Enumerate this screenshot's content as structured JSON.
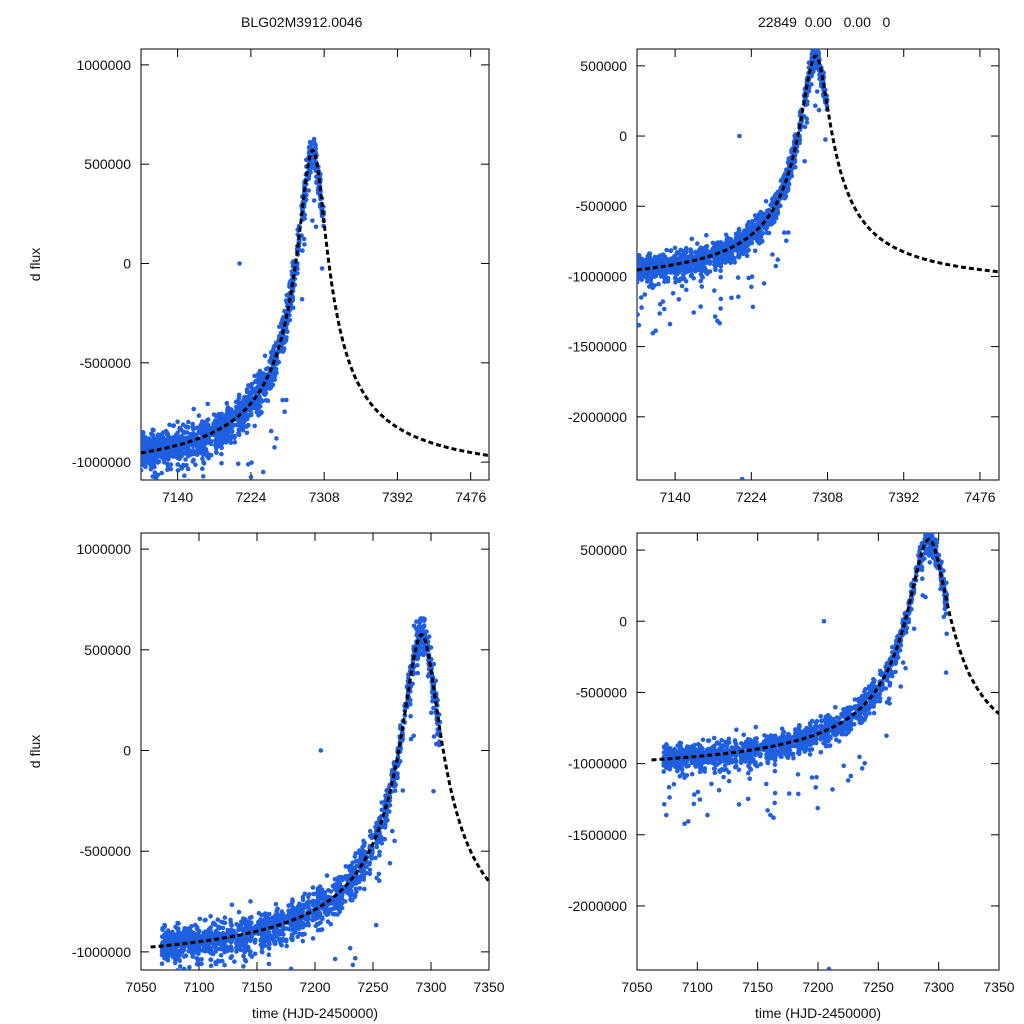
{
  "titles": {
    "left": "BLG02M3912.0046",
    "right": "22849  0.00   0.00   0"
  },
  "colors": {
    "points": "#1f5fe0",
    "model": "#000000",
    "axes": "#000000"
  },
  "chart_data": [
    {
      "type": "scatter",
      "panel": "top-left",
      "title": "BLG02M3912.0046",
      "xlabel": "",
      "ylabel": "d flux",
      "xlim": [
        7098,
        7497
      ],
      "ylim": [
        -1090000,
        1080000
      ],
      "xticks": [
        7140,
        7224,
        7308,
        7392,
        7476
      ],
      "yticks": [
        -1000000,
        -500000,
        0,
        500000,
        1000000
      ],
      "data_range": [
        7098,
        7307
      ],
      "outliers": [
        [
          7211,
          0
        ]
      ],
      "model": {
        "t0": 7295,
        "peak": 570000,
        "baseline": -1100000,
        "rise_tau": 30,
        "fall_tau": 28
      }
    },
    {
      "type": "scatter",
      "panel": "top-right",
      "title": "22849  0.00   0.00   0",
      "xlabel": "",
      "ylabel": "",
      "xlim": [
        7098,
        7497
      ],
      "ylim": [
        -2450000,
        620000
      ],
      "xticks": [
        7140,
        7224,
        7308,
        7392,
        7476
      ],
      "yticks": [
        -2000000,
        -1500000,
        -1000000,
        -500000,
        0,
        500000
      ],
      "data_range": [
        7098,
        7307
      ],
      "outliers": [
        [
          7211,
          0
        ],
        [
          7214,
          -2450000
        ]
      ],
      "model": {
        "t0": 7295,
        "peak": 570000,
        "baseline": -1100000,
        "rise_tau": 30,
        "fall_tau": 28
      }
    },
    {
      "type": "scatter",
      "panel": "bottom-left",
      "title": "",
      "xlabel": "time (HJD-2450000)",
      "ylabel": "d flux",
      "xlim": [
        7050,
        7350
      ],
      "ylim": [
        -1090000,
        1080000
      ],
      "xticks": [
        7050,
        7100,
        7150,
        7200,
        7250,
        7300,
        7350
      ],
      "yticks": [
        -1000000,
        -500000,
        0,
        500000,
        1000000
      ],
      "data_range": [
        7068,
        7307
      ],
      "outliers": [
        [
          7205,
          0
        ]
      ],
      "model": {
        "t0": 7292,
        "peak": 575000,
        "baseline": -1100000,
        "rise_tau": 30,
        "fall_tau": 28
      }
    },
    {
      "type": "scatter",
      "panel": "bottom-right",
      "title": "",
      "xlabel": "time (HJD-2450000)",
      "ylabel": "",
      "xlim": [
        7050,
        7350
      ],
      "ylim": [
        -2450000,
        620000
      ],
      "xticks": [
        7050,
        7100,
        7150,
        7200,
        7250,
        7300,
        7350
      ],
      "yticks": [
        -2000000,
        -1500000,
        -1000000,
        -500000,
        0,
        500000
      ],
      "data_range": [
        7072,
        7307
      ],
      "outliers": [
        [
          7205,
          0
        ],
        [
          7209,
          -2450000
        ]
      ],
      "model": {
        "t0": 7292,
        "peak": 575000,
        "baseline": -1100000,
        "rise_tau": 30,
        "fall_tau": 28
      }
    }
  ]
}
